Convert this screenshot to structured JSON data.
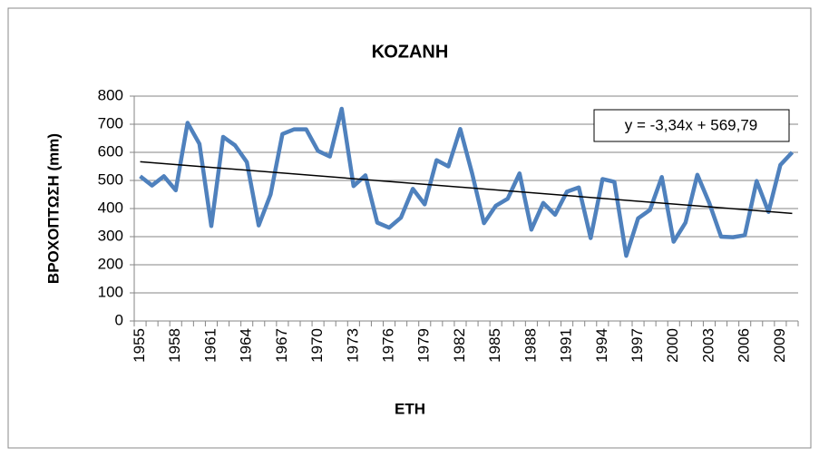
{
  "chart_data": {
    "type": "line",
    "title": "ΚΟΖΑΝΗ",
    "y_label": "ΒΡΟΧΟΠΤΩΣΗ (mm)",
    "x_label": "ΕΤΗ",
    "categories": [
      "1955",
      null,
      null,
      "1958",
      null,
      null,
      "1961",
      null,
      null,
      "1964",
      null,
      null,
      "1967",
      null,
      null,
      "1970",
      null,
      null,
      "1973",
      null,
      null,
      "1976",
      null,
      null,
      "1979",
      null,
      null,
      "1982",
      null,
      null,
      "1985",
      null,
      null,
      "1988",
      null,
      null,
      "1991",
      null,
      null,
      "1994",
      null,
      null,
      "1997",
      null,
      null,
      "2000",
      null,
      null,
      "2003",
      null,
      null,
      "2006",
      null,
      null,
      "2009",
      null
    ],
    "series": [
      {
        "color": "#4f81bd",
        "values": [
          515,
          482,
          515,
          465,
          705,
          630,
          338,
          655,
          625,
          565,
          340,
          450,
          665,
          682,
          682,
          605,
          585,
          755,
          480,
          518,
          350,
          332,
          368,
          470,
          415,
          572,
          550,
          683,
          525,
          348,
          410,
          435,
          525,
          325,
          420,
          378,
          460,
          475,
          295,
          505,
          495,
          232,
          365,
          395,
          512,
          282,
          350,
          520,
          420,
          300,
          298,
          305,
          498,
          388,
          555,
          600
        ]
      }
    ],
    "trendline": {
      "label": "y = -3,34x + 569,79",
      "slope": -3.34,
      "intercept": 569.79,
      "color": "#000000"
    },
    "ylim": [
      0,
      800
    ],
    "yticks": [
      0,
      100,
      200,
      300,
      400,
      500,
      600,
      700,
      800
    ],
    "grid": true
  }
}
